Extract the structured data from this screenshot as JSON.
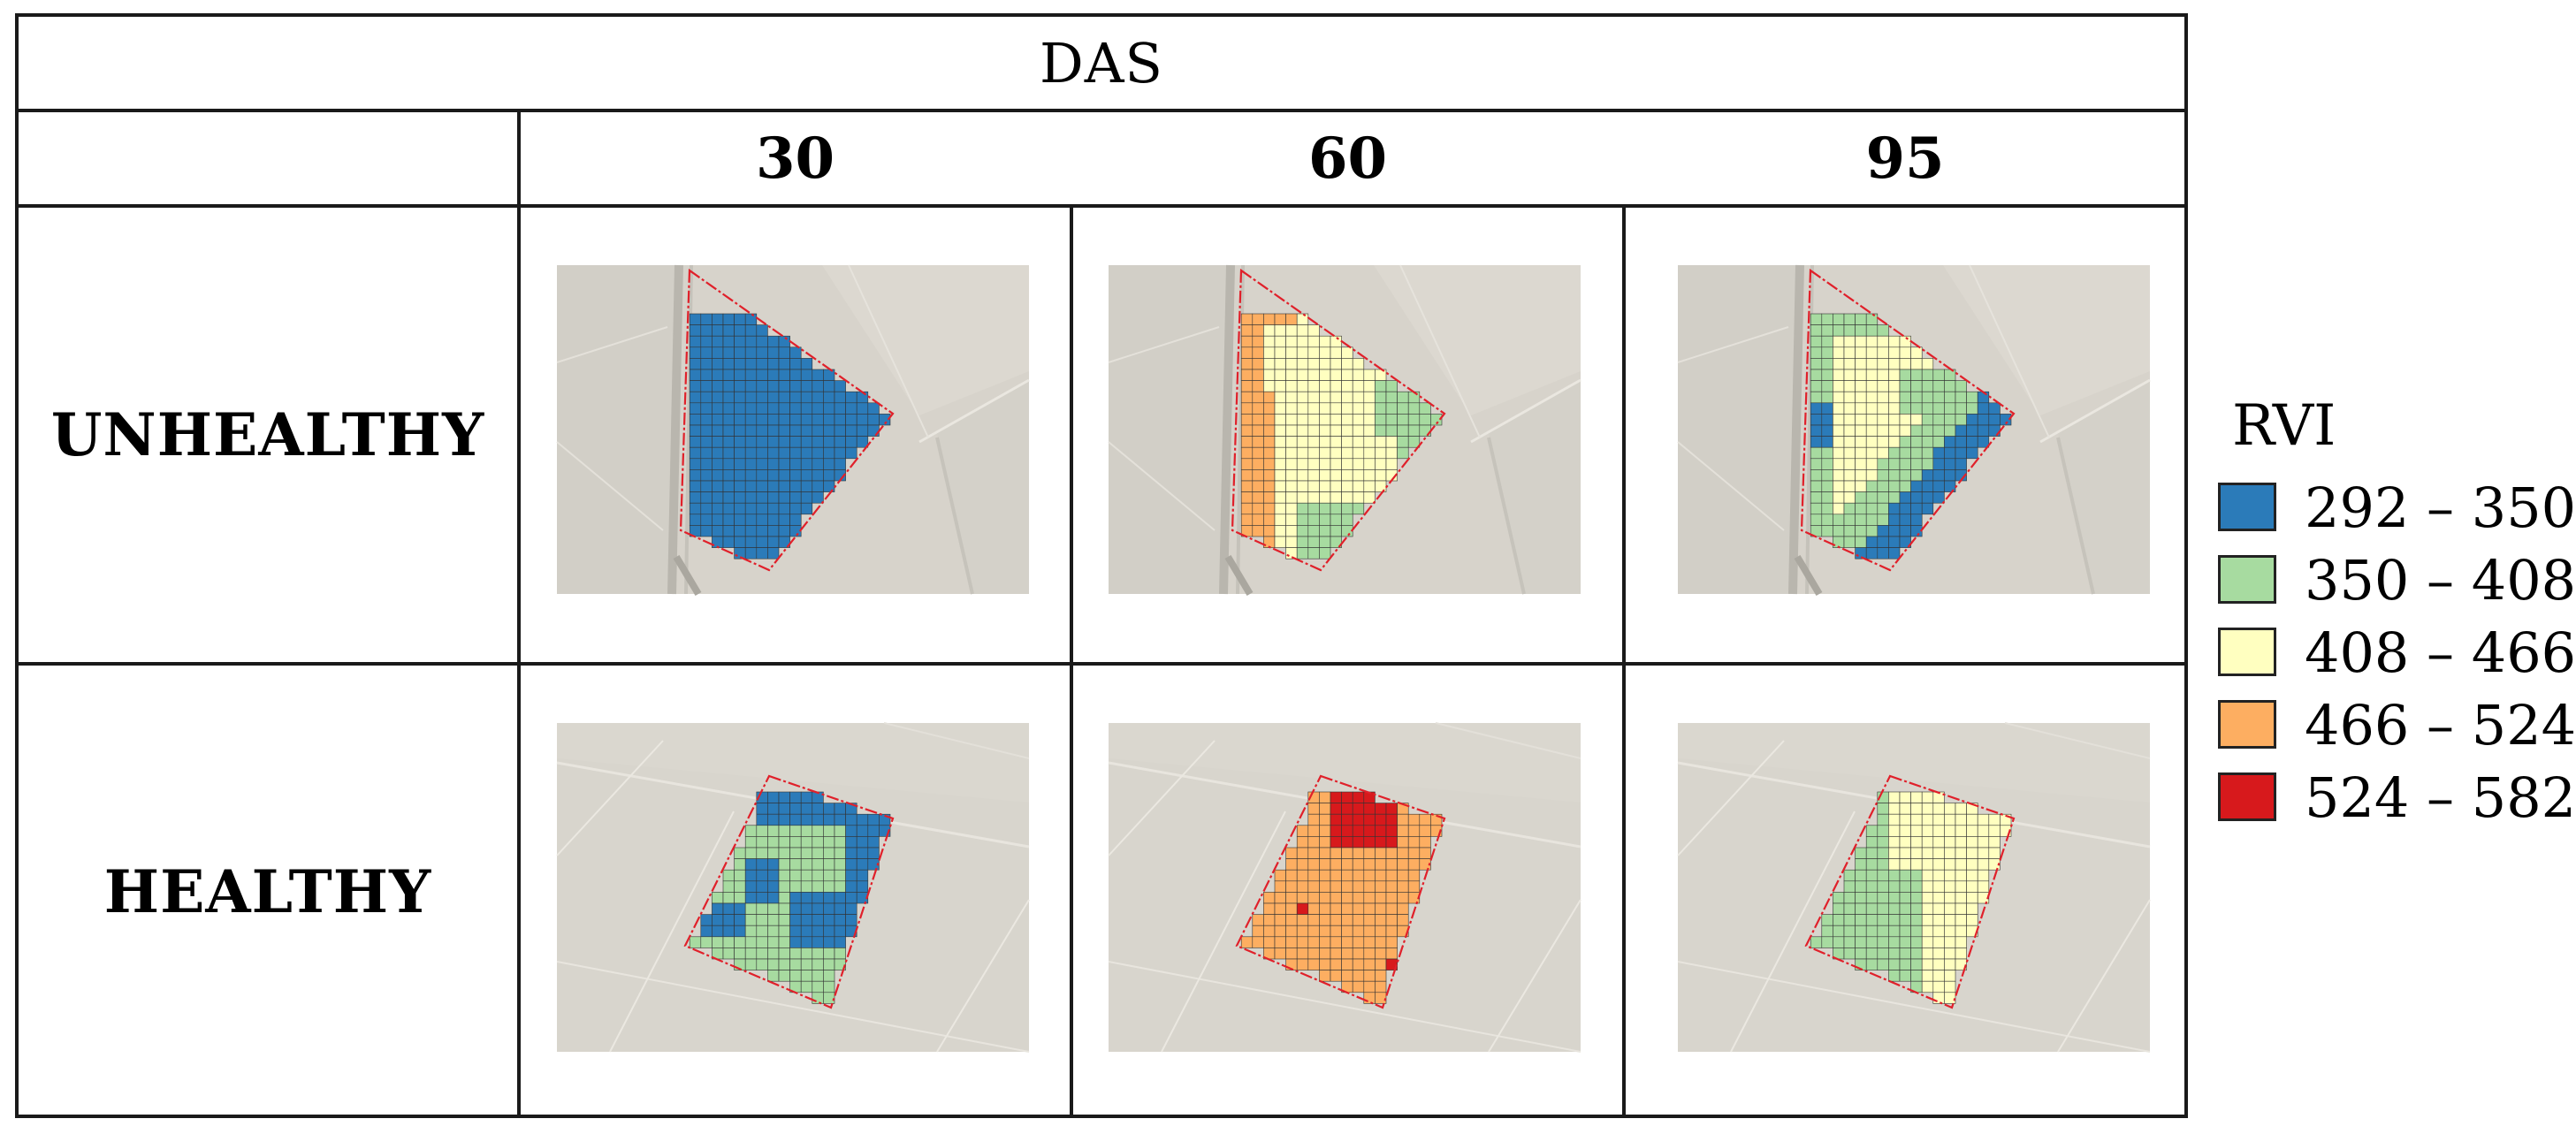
{
  "header": {
    "group_label": "DAS"
  },
  "columns": [
    {
      "label": "30"
    },
    {
      "label": "60"
    },
    {
      "label": "95"
    }
  ],
  "rows": [
    {
      "label": "UNHEALTHY",
      "site": "triangle",
      "maps": [
        {
          "das": "30",
          "dominant_class": "292 – 350"
        },
        {
          "das": "60",
          "dominant_class": "408 – 466"
        },
        {
          "das": "95",
          "dominant_class": "408 – 466"
        }
      ]
    },
    {
      "label": "HEALTHY",
      "site": "square",
      "maps": [
        {
          "das": "30",
          "dominant_class": "350 – 408"
        },
        {
          "das": "60",
          "dominant_class": "466 – 524"
        },
        {
          "das": "95",
          "dominant_class": "408 – 466"
        }
      ]
    }
  ],
  "legend": {
    "title": "RVI",
    "items": [
      {
        "label": "292 – 350",
        "color": "#2b7bb9"
      },
      {
        "label": "350 – 408",
        "color": "#a7dba0"
      },
      {
        "label": "408 – 466",
        "color": "#ffffc0"
      },
      {
        "label": "466 – 524",
        "color": "#fdae61"
      },
      {
        "label": "524 – 582",
        "color": "#d7191c"
      }
    ]
  },
  "boundary_color": "#e0202a",
  "grid_line_color": "#333333"
}
